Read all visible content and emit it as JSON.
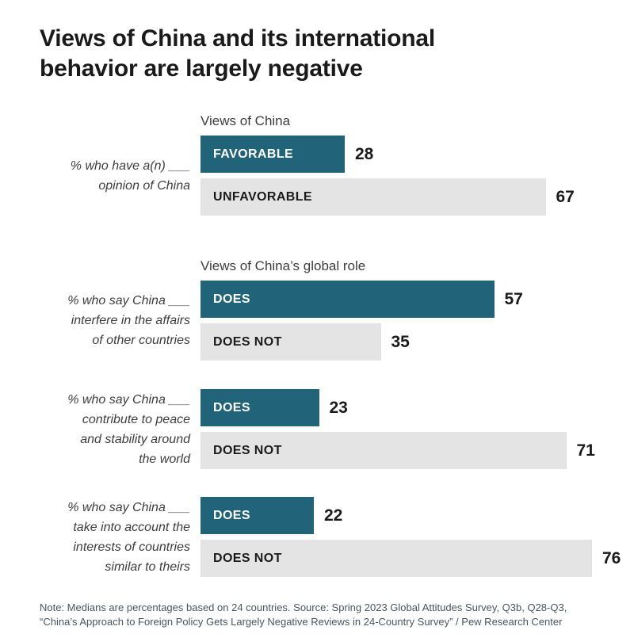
{
  "title": "Views of China and its international\nbehavior are largely negative",
  "colors": {
    "teal": "#21647a",
    "bar_gray": "#e4e4e4",
    "ink": "#1a1a1a",
    "label_gray": "#3d3d3d",
    "note_gray": "#4a5560"
  },
  "chart_data": {
    "type": "bar",
    "orientation": "horizontal",
    "value_unit": "percent (medians across 24 countries)",
    "xlim": [
      0,
      80
    ],
    "legend": "none",
    "grid": false,
    "groups": [
      {
        "header": "Views of China",
        "side_label": "% who have a(n) ___\nopinion of China",
        "bars": [
          {
            "label": "FAVORABLE",
            "value": 28,
            "color": "teal"
          },
          {
            "label": "UNFAVORABLE",
            "value": 67,
            "color": "gray"
          }
        ]
      },
      {
        "header": "Views of China’s global role",
        "side_label": "% who say China ___\ninterfere in the affairs\nof other countries",
        "bars": [
          {
            "label": "DOES",
            "value": 57,
            "color": "teal"
          },
          {
            "label": "DOES NOT",
            "value": 35,
            "color": "gray"
          }
        ]
      },
      {
        "side_label": "% who say China ___\ncontribute to peace\nand stability around\nthe world",
        "bars": [
          {
            "label": "DOES",
            "value": 23,
            "color": "teal"
          },
          {
            "label": "DOES NOT",
            "value": 71,
            "color": "gray"
          }
        ]
      },
      {
        "side_label": "% who say China ___\ntake into account the\ninterests of countries\nsimilar to theirs",
        "bars": [
          {
            "label": "DOES",
            "value": 22,
            "color": "teal"
          },
          {
            "label": "DOES NOT",
            "value": 76,
            "color": "gray"
          }
        ]
      }
    ]
  },
  "footer": "Note: Medians are percentages based on 24 countries. Source: Spring 2023 Global Attitudes Survey, Q3b, Q28-Q3,\n“China’s Approach to Foreign Policy Gets Largely Negative Reviews in 24-Country Survey” / Pew Research Center"
}
